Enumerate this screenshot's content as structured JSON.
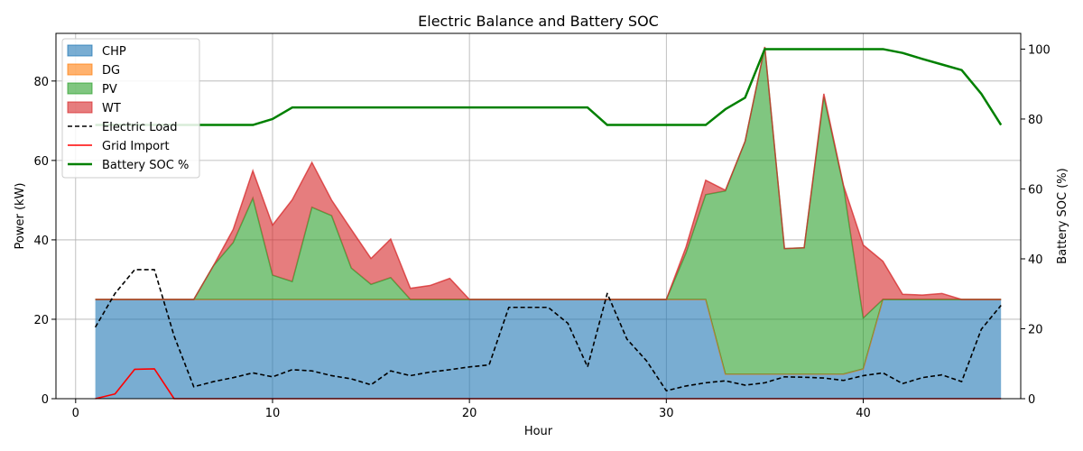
{
  "chart_data": {
    "type": "area",
    "title": "Electric Balance and Battery SOC",
    "xlabel": "Hour",
    "ylabel": "Power (kW)",
    "y2label": "Battery SOC (%)",
    "xlim": [
      -1,
      48
    ],
    "ylim": [
      0,
      92
    ],
    "y2lim": [
      0,
      104.5
    ],
    "xticks": [
      0,
      10,
      20,
      30,
      40
    ],
    "yticks": [
      0,
      20,
      40,
      60,
      80
    ],
    "y2ticks": [
      0,
      20,
      40,
      60,
      80,
      100
    ],
    "grid": true,
    "legend_position": "upper-left",
    "x": [
      1,
      2,
      3,
      4,
      5,
      6,
      7,
      8,
      9,
      10,
      11,
      12,
      13,
      14,
      15,
      16,
      17,
      18,
      19,
      20,
      21,
      22,
      23,
      24,
      25,
      26,
      27,
      28,
      29,
      30,
      31,
      32,
      33,
      34,
      35,
      36,
      37,
      38,
      39,
      40,
      41,
      42,
      43,
      44,
      45,
      46,
      47
    ],
    "stacked_series": [
      {
        "name": "CHP",
        "color": "#1f77b4",
        "values": [
          25,
          25,
          25,
          25,
          25,
          25,
          25,
          25,
          25,
          25,
          25,
          25,
          25,
          25,
          25,
          25,
          25,
          25,
          25,
          25,
          25,
          25,
          25,
          25,
          25,
          25,
          25,
          25,
          25,
          25,
          25,
          25,
          6.2,
          6.2,
          6.2,
          6.2,
          6.2,
          6.2,
          6.2,
          7.5,
          25,
          25,
          25,
          25,
          25,
          25,
          25
        ]
      },
      {
        "name": "DG",
        "color": "#ff7f0e",
        "values": [
          0,
          0,
          0,
          0,
          0,
          0,
          0,
          0,
          0,
          0,
          0,
          0,
          0,
          0,
          0,
          0,
          0,
          0,
          0,
          0,
          0,
          0,
          0,
          0,
          0,
          0,
          0,
          0,
          0,
          0,
          0,
          0,
          0,
          0,
          0,
          0,
          0,
          0,
          0,
          0,
          0,
          0,
          0,
          0,
          0,
          0,
          0
        ]
      },
      {
        "name": "PV",
        "color": "#2ca02c",
        "values": [
          0,
          0,
          0,
          0,
          0,
          0,
          8.5,
          14.3,
          25.5,
          6.1,
          4.5,
          23.2,
          21.1,
          7.9,
          3.8,
          5.5,
          0,
          0,
          0,
          0,
          0,
          0,
          0,
          0,
          0,
          0,
          0,
          0,
          0,
          0,
          11.7,
          26.4,
          46.1,
          58.6,
          82.3,
          31.6,
          31.8,
          69.8,
          47.2,
          12.8,
          0,
          0,
          0,
          0,
          0,
          0,
          0
        ]
      },
      {
        "name": "WT",
        "color": "#d62728",
        "values": [
          0,
          0,
          0,
          0,
          0,
          0,
          0,
          3.3,
          6.9,
          12.6,
          20.6,
          11.3,
          3.9,
          9.7,
          6.5,
          9.7,
          2.8,
          3.5,
          5.3,
          0,
          0,
          0,
          0,
          0,
          0,
          0,
          0,
          0,
          0,
          0,
          1.5,
          3.6,
          0.2,
          0,
          0.1,
          0,
          0,
          0.8,
          0.3,
          18.4,
          9.6,
          1.3,
          1.1,
          1.5,
          0,
          0,
          0
        ]
      }
    ],
    "line_series": [
      {
        "name": "Electric Load",
        "color": "#000000",
        "style": "dashed",
        "axis": "left",
        "values": [
          18.0,
          26.5,
          32.5,
          32.5,
          15.8,
          3.0,
          4.3,
          5.3,
          6.5,
          5.5,
          7.3,
          7.0,
          5.8,
          5.0,
          3.5,
          7.0,
          5.8,
          6.7,
          7.3,
          8.0,
          8.5,
          23.0,
          23.0,
          23.0,
          19.0,
          8.0,
          26.5,
          15.0,
          9.5,
          2.0,
          3.2,
          4.0,
          4.5,
          3.4,
          4.0,
          5.5,
          5.4,
          5.2,
          4.6,
          5.8,
          6.5,
          3.8,
          5.3,
          6.0,
          4.3,
          17.5,
          23.5
        ]
      },
      {
        "name": "Grid Import",
        "color": "#ff0000",
        "style": "solid",
        "axis": "left",
        "values": [
          0,
          1.2,
          7.4,
          7.5,
          0,
          0,
          0,
          0,
          0,
          0,
          0,
          0,
          0,
          0,
          0,
          0,
          0,
          0,
          0,
          0,
          0,
          0,
          0,
          0,
          0,
          0,
          0,
          0,
          0,
          0,
          0,
          0,
          0,
          0,
          0,
          0,
          0,
          0,
          0,
          0,
          0,
          0,
          0,
          0,
          0,
          0,
          0
        ]
      },
      {
        "name": "Battery SOC %",
        "color": "#008000",
        "style": "solid",
        "axis": "right",
        "values": [
          78.3,
          78.3,
          78.3,
          78.3,
          78.3,
          78.3,
          78.3,
          78.3,
          78.3,
          80.0,
          83.3,
          83.3,
          83.3,
          83.3,
          83.3,
          83.3,
          83.3,
          83.3,
          83.3,
          83.3,
          83.3,
          83.3,
          83.3,
          83.3,
          83.3,
          83.3,
          78.3,
          78.3,
          78.3,
          78.3,
          78.3,
          78.3,
          82.8,
          86.1,
          100,
          100,
          100,
          100,
          100,
          100,
          100,
          98.9,
          97.2,
          95.6,
          94.0,
          87.2,
          78.3
        ]
      }
    ]
  }
}
